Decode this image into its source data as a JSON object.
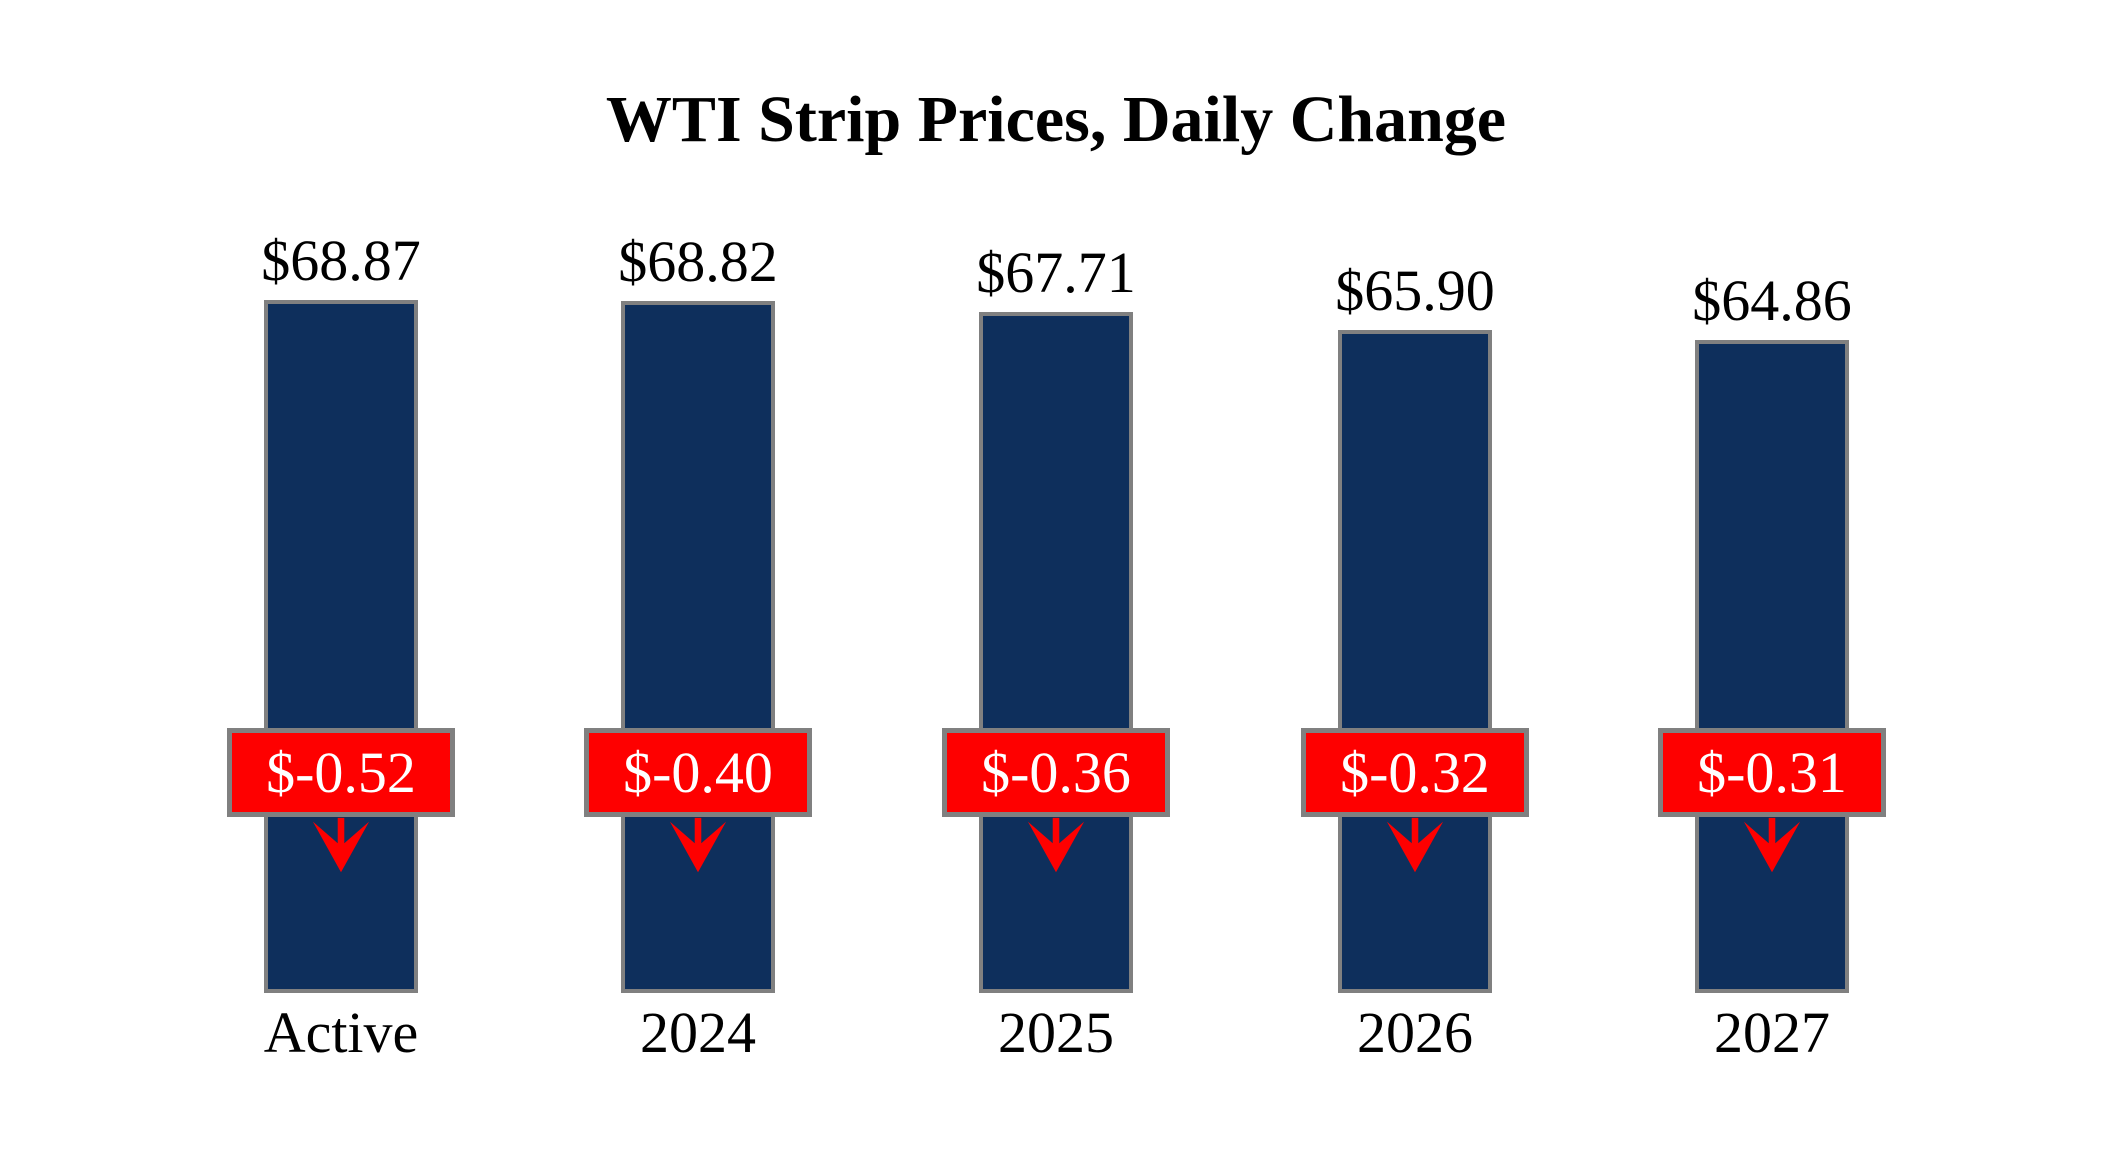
{
  "chart_data": {
    "type": "bar",
    "title": "WTI Strip Prices, Daily Change",
    "categories": [
      "Active",
      "2024",
      "2025",
      "2026",
      "2027"
    ],
    "series": [
      {
        "name": "strip_price_usd",
        "values": [
          68.87,
          68.82,
          67.71,
          65.9,
          64.86
        ]
      },
      {
        "name": "daily_change_usd",
        "values": [
          -0.52,
          -0.4,
          -0.36,
          -0.32,
          -0.31
        ]
      }
    ],
    "ylim": [
      0,
      70
    ],
    "grid": false,
    "legend_position": "none",
    "bars": [
      {
        "category": "Active",
        "price": 68.87,
        "change": -0.52,
        "price_label": "$68.87",
        "change_label": "$-0.52"
      },
      {
        "category": "2024",
        "price": 68.82,
        "change": -0.4,
        "price_label": "$68.82",
        "change_label": "$-0.40"
      },
      {
        "category": "2025",
        "price": 67.71,
        "change": -0.36,
        "price_label": "$67.71",
        "change_label": "$-0.36"
      },
      {
        "category": "2026",
        "price": 65.9,
        "change": -0.32,
        "price_label": "$65.90",
        "change_label": "$-0.32"
      },
      {
        "category": "2027",
        "price": 64.86,
        "change": -0.31,
        "price_label": "$64.86",
        "change_label": "$-0.31"
      }
    ],
    "colors": {
      "bar_fill": "#0e2f5c",
      "bar_border": "#808080",
      "change_box_fill": "#fe0000",
      "change_box_border": "#808080",
      "change_text": "#ffffff",
      "arrow": "#fe0000",
      "label_text": "#000000"
    }
  }
}
